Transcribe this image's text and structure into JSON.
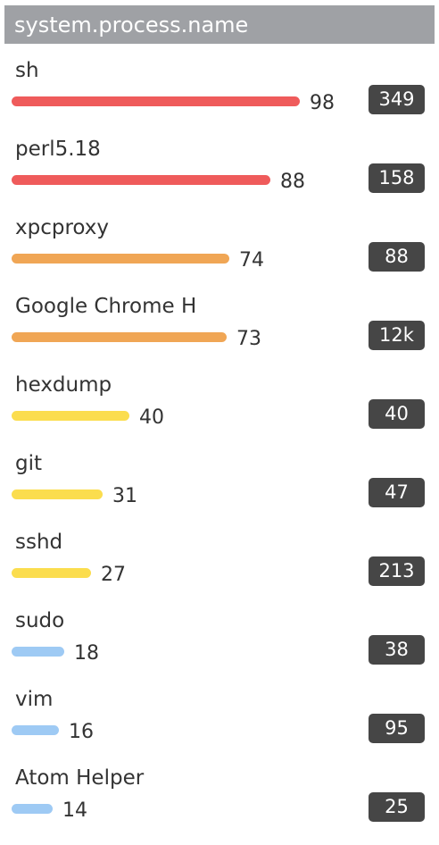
{
  "chart_data": {
    "type": "bar",
    "title": "system.process.name",
    "categories": [
      "sh",
      "perl5.18",
      "xpcproxy",
      "Google Chrome H",
      "hexdump",
      "git",
      "sshd",
      "sudo",
      "vim",
      "Atom Helper"
    ],
    "values": [
      98,
      88,
      74,
      73,
      40,
      31,
      27,
      18,
      16,
      14
    ],
    "counts": [
      "349",
      "158",
      "88",
      "12k",
      "40",
      "47",
      "213",
      "38",
      "95",
      "25"
    ],
    "xlim": [
      0,
      100
    ],
    "colors": {
      "high": "#ef5b5b",
      "upper": "#f0a655",
      "middle": "#fbdd4e",
      "low": "#9ecaf4"
    },
    "thresholds": [
      80,
      50,
      20
    ]
  }
}
